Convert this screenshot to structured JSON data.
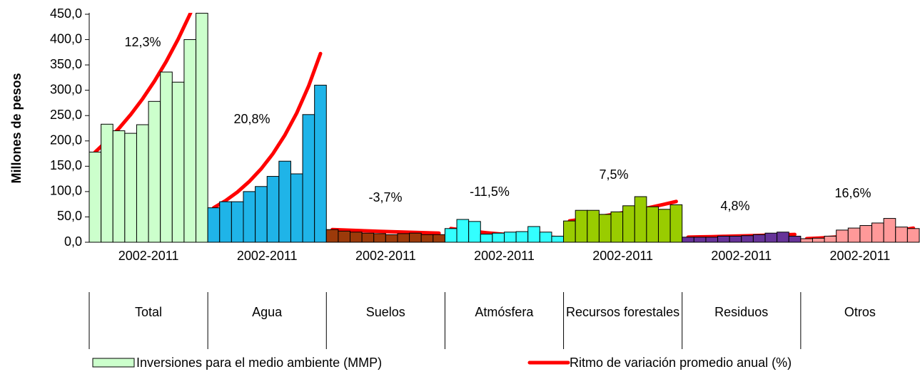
{
  "chart_data": {
    "type": "bar",
    "y_label": "Millones de pesos",
    "ylim": [
      0,
      450
    ],
    "yticks": [
      {
        "value": 0,
        "label": "0,0"
      },
      {
        "value": 50,
        "label": "50,0"
      },
      {
        "value": 100,
        "label": "100,0"
      },
      {
        "value": 150,
        "label": "150,0"
      },
      {
        "value": 200,
        "label": "200,0"
      },
      {
        "value": 250,
        "label": "250,0"
      },
      {
        "value": 300,
        "label": "300,0"
      },
      {
        "value": 350,
        "label": "350,0"
      },
      {
        "value": 400,
        "label": "400,0"
      },
      {
        "value": 450,
        "label": "450,0"
      }
    ],
    "bar_series_name": "Inversiones para el medio ambiente (MMP)",
    "trend_series_name": "Ritmo de variación promedio anual (%)",
    "trend_color": "#ff0000",
    "groups": [
      {
        "name": "Total",
        "period": "2002-2011",
        "color": "#ccffcc",
        "rate_label": "12,3%",
        "values": [
          178,
          233,
          220,
          215,
          232,
          278,
          336,
          316,
          400,
          452
        ],
        "trend": [
          178,
          199.9,
          224.5,
          252.1,
          283.1,
          317.9,
          357.0,
          400.9,
          450.2,
          505.6
        ]
      },
      {
        "name": "Agua",
        "period": "2002-2011",
        "color": "#1fb4e8",
        "rate_label": "20,8%",
        "values": [
          68,
          80,
          80,
          100,
          110,
          130,
          160,
          135,
          252,
          310
        ],
        "trend": [
          68,
          82.1,
          99.2,
          119.9,
          144.8,
          174.9,
          211.3,
          255.2,
          308.3,
          372.4
        ]
      },
      {
        "name": "Suelos",
        "period": "2002-2011",
        "color": "#9c3a0a",
        "rate_label": "-3,7%",
        "values": [
          25,
          22,
          20,
          18,
          17,
          15,
          17,
          18,
          15,
          15
        ],
        "trend": [
          25,
          24.1,
          23.2,
          22.3,
          21.5,
          20.7,
          19.9,
          19.2,
          18.5,
          17.8
        ]
      },
      {
        "name": "Atmósfera",
        "period": "2002-2011",
        "color": "#33ffff",
        "rate_label": "-11,5%",
        "values": [
          27,
          45,
          41,
          16,
          18,
          20,
          21,
          31,
          20,
          12
        ],
        "trend": [
          27,
          23.9,
          21.1,
          18.7,
          16.6,
          14.7,
          13.0,
          11.5,
          10.2,
          9.0
        ]
      },
      {
        "name": "Recursos forestales",
        "period": "2002-2011",
        "color": "#99cc00",
        "rate_label": "7,5%",
        "values": [
          42,
          63,
          63,
          55,
          60,
          72,
          90,
          70,
          65,
          74
        ],
        "trend": [
          42,
          45.2,
          48.5,
          52.2,
          56.1,
          60.3,
          64.8,
          69.7,
          74.9,
          80.5
        ]
      },
      {
        "name": "Residuos",
        "period": "2002-2011",
        "color": "#663399",
        "rate_label": "4,8%",
        "values": [
          10,
          10,
          10,
          12,
          12,
          13,
          15,
          18,
          20,
          12
        ],
        "trend": [
          10,
          10.5,
          11.0,
          11.5,
          12.1,
          12.6,
          13.3,
          13.9,
          14.6,
          15.3
        ]
      },
      {
        "name": "Otros",
        "period": "2002-2011",
        "color": "#ff9999",
        "rate_label": "16,6%",
        "values": [
          7,
          8,
          12,
          24,
          28,
          33,
          38,
          47,
          30,
          27
        ],
        "trend": [
          7,
          8.2,
          9.5,
          11.1,
          12.9,
          15.1,
          17.6,
          20.5,
          23.9,
          27.9
        ]
      }
    ]
  }
}
